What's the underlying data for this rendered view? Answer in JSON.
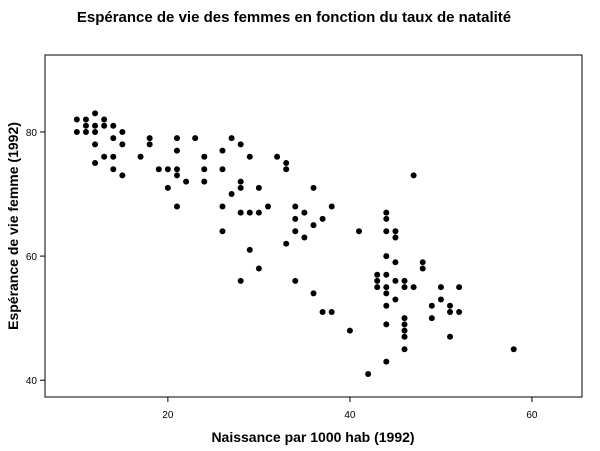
{
  "chart_data": {
    "type": "scatter",
    "title": "Espérance de vie des femmes en fonction du taux de natalité",
    "xlabel": "Naissance par 1000 hab (1992)",
    "ylabel": "Espérance de vie femme (1992)",
    "xlim": [
      6.5,
      65.5
    ],
    "ylim": [
      37.3,
      92.4
    ],
    "xticks": [
      20,
      40,
      60
    ],
    "yticks": [
      40,
      60,
      80
    ],
    "grid": false,
    "points": [
      [
        10,
        82
      ],
      [
        11,
        82
      ],
      [
        12,
        83
      ],
      [
        13,
        82
      ],
      [
        10,
        80
      ],
      [
        11,
        80
      ],
      [
        11,
        81
      ],
      [
        12,
        81
      ],
      [
        13,
        81
      ],
      [
        12,
        80
      ],
      [
        14,
        81
      ],
      [
        15,
        80
      ],
      [
        14,
        79
      ],
      [
        12,
        78
      ],
      [
        15,
        78
      ],
      [
        13,
        76
      ],
      [
        14,
        76
      ],
      [
        12,
        75
      ],
      [
        14,
        74
      ],
      [
        15,
        73
      ],
      [
        17,
        76
      ],
      [
        18,
        79
      ],
      [
        18,
        78
      ],
      [
        19,
        74
      ],
      [
        20,
        74
      ],
      [
        20,
        71
      ],
      [
        21,
        74
      ],
      [
        21,
        73
      ],
      [
        21,
        68
      ],
      [
        21,
        79
      ],
      [
        21,
        77
      ],
      [
        22,
        72
      ],
      [
        23,
        79
      ],
      [
        24,
        76
      ],
      [
        24,
        74
      ],
      [
        24,
        72
      ],
      [
        26,
        77
      ],
      [
        26,
        74
      ],
      [
        26,
        68
      ],
      [
        26,
        64
      ],
      [
        27,
        79
      ],
      [
        27,
        70
      ],
      [
        28,
        78
      ],
      [
        28,
        72
      ],
      [
        28,
        71
      ],
      [
        28,
        67
      ],
      [
        28,
        56
      ],
      [
        29,
        76
      ],
      [
        29,
        67
      ],
      [
        29,
        61
      ],
      [
        30,
        71
      ],
      [
        30,
        67
      ],
      [
        30,
        58
      ],
      [
        31,
        68
      ],
      [
        32,
        76
      ],
      [
        33,
        75
      ],
      [
        33,
        74
      ],
      [
        33,
        62
      ],
      [
        34,
        68
      ],
      [
        34,
        66
      ],
      [
        34,
        64
      ],
      [
        34,
        56
      ],
      [
        35,
        67
      ],
      [
        35,
        63
      ],
      [
        36,
        71
      ],
      [
        36,
        65
      ],
      [
        36,
        54
      ],
      [
        37,
        66
      ],
      [
        37,
        51
      ],
      [
        38,
        68
      ],
      [
        38,
        51
      ],
      [
        40,
        48
      ],
      [
        41,
        64
      ],
      [
        42,
        41
      ],
      [
        43,
        57
      ],
      [
        43,
        56
      ],
      [
        43,
        55
      ],
      [
        44,
        67
      ],
      [
        44,
        66
      ],
      [
        44,
        64
      ],
      [
        44,
        60
      ],
      [
        44,
        57
      ],
      [
        44,
        55
      ],
      [
        44,
        54
      ],
      [
        44,
        52
      ],
      [
        44,
        49
      ],
      [
        44,
        43
      ],
      [
        45,
        64
      ],
      [
        45,
        63
      ],
      [
        45,
        59
      ],
      [
        45,
        56
      ],
      [
        45,
        53
      ],
      [
        46,
        56
      ],
      [
        46,
        55
      ],
      [
        46,
        50
      ],
      [
        46,
        49
      ],
      [
        46,
        48
      ],
      [
        46,
        47
      ],
      [
        46,
        45
      ],
      [
        47,
        73
      ],
      [
        47,
        55
      ],
      [
        48,
        59
      ],
      [
        48,
        58
      ],
      [
        49,
        52
      ],
      [
        49,
        50
      ],
      [
        50,
        55
      ],
      [
        50,
        53
      ],
      [
        51,
        52
      ],
      [
        51,
        51
      ],
      [
        51,
        47
      ],
      [
        52,
        55
      ],
      [
        52,
        51
      ],
      [
        58,
        45
      ]
    ]
  }
}
